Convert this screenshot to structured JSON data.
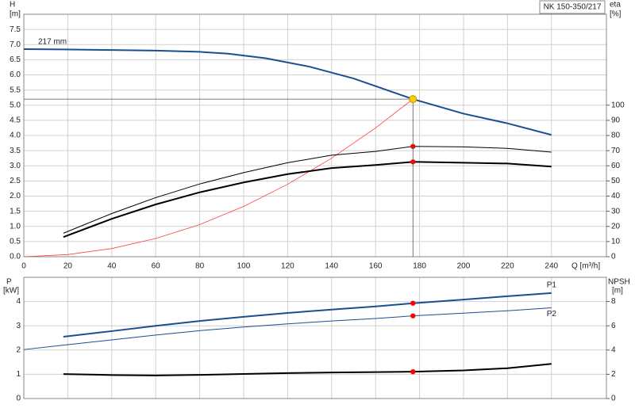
{
  "chart_data": [
    {
      "type": "line",
      "title": "NK 150-350/217",
      "annotation": "217 mm",
      "xlabel": "Q [m³/h]",
      "ylabel": "H",
      "yunit": "[m]",
      "y2label": "eta",
      "y2unit": "[%]",
      "xlim": [
        0,
        265
      ],
      "xticks": [
        0,
        20,
        40,
        60,
        80,
        100,
        120,
        140,
        160,
        180,
        200,
        220,
        240
      ],
      "ylim": [
        0,
        8
      ],
      "yticks": [
        {
          "value": 0,
          "label": "0.0"
        },
        {
          "value": 0.5,
          "label": "0.5"
        },
        {
          "value": 1,
          "label": "1.0"
        },
        {
          "value": 1.5,
          "label": "1.5"
        },
        {
          "value": 2,
          "label": "2.0"
        },
        {
          "value": 2.5,
          "label": "2.5"
        },
        {
          "value": 3,
          "label": "3.0"
        },
        {
          "value": 3.5,
          "label": "3.5"
        },
        {
          "value": 4,
          "label": "4.0"
        },
        {
          "value": 4.5,
          "label": "4.5"
        },
        {
          "value": 5,
          "label": "5.0"
        },
        {
          "value": 5.5,
          "label": "5.5"
        },
        {
          "value": 6,
          "label": "6.0"
        },
        {
          "value": 6.5,
          "label": "6.5"
        },
        {
          "value": 7,
          "label": "7.0"
        },
        {
          "value": 7.5,
          "label": "7.5"
        }
      ],
      "y2lim": [
        0,
        160
      ],
      "y2ticks": [
        0,
        10,
        20,
        30,
        40,
        50,
        60,
        70,
        80,
        90,
        100
      ],
      "grid": true,
      "operating_point": {
        "x": 177,
        "y": 5.2,
        "color": "#ffcc00",
        "guide_color": "#555555"
      },
      "series": [
        {
          "color": "#1a4f8f",
          "line_width": 2,
          "x": [
            0,
            18,
            40,
            60,
            80,
            93,
            110,
            130,
            150,
            177,
            200,
            220,
            240
          ],
          "values": [
            6.85,
            6.84,
            6.82,
            6.8,
            6.76,
            6.7,
            6.55,
            6.27,
            5.88,
            5.2,
            4.72,
            4.4,
            4.02
          ]
        },
        {
          "color": "#ff4040",
          "line_width": 0.8,
          "x": [
            0,
            20,
            40,
            60,
            80,
            100,
            120,
            140,
            160,
            177
          ],
          "values": [
            0,
            0.07,
            0.27,
            0.6,
            1.06,
            1.66,
            2.39,
            3.25,
            4.25,
            5.2
          ]
        },
        {
          "color": "#000000",
          "line_width": 1,
          "axis": "y2",
          "point_marker": "#ff0000",
          "x": [
            18,
            40,
            60,
            80,
            100,
            120,
            140,
            160,
            177,
            200,
            220,
            240
          ],
          "values": [
            15.5,
            28.5,
            39,
            48,
            55.5,
            62,
            67,
            69.5,
            72.8,
            72.5,
            71.5,
            69
          ]
        },
        {
          "color": "#000000",
          "line_width": 2,
          "axis": "y2",
          "point_marker": "#ff0000",
          "x": [
            18,
            40,
            60,
            80,
            100,
            120,
            140,
            160,
            177,
            200,
            220,
            240
          ],
          "values": [
            13,
            25,
            34.5,
            42.5,
            49,
            54.5,
            58.5,
            60.5,
            62.6,
            62,
            61.5,
            59.5
          ]
        }
      ]
    },
    {
      "type": "line",
      "ylabel": "P",
      "yunit": "[kW]",
      "y2label": "NPSH",
      "y2unit": "[m]",
      "ylim": [
        0,
        5
      ],
      "yticks": [
        0,
        1,
        2,
        3,
        4
      ],
      "y2lim": [
        0,
        10
      ],
      "y2ticks": [
        0,
        2,
        4,
        6,
        8
      ],
      "grid": true,
      "series": [
        {
          "name": "P1",
          "color": "#1a4f8f",
          "line_width": 2,
          "point_marker": "#ff0000",
          "x": [
            18,
            40,
            60,
            80,
            100,
            120,
            140,
            160,
            177,
            200,
            220,
            240
          ],
          "values": [
            2.55,
            2.78,
            3.0,
            3.2,
            3.37,
            3.53,
            3.67,
            3.8,
            3.93,
            4.08,
            4.22,
            4.35
          ]
        },
        {
          "name": "P2",
          "color": "#1a4f8f",
          "line_width": 1,
          "point_marker": "#ff0000",
          "x": [
            0,
            18,
            40,
            60,
            80,
            100,
            120,
            140,
            160,
            177,
            200,
            220,
            240
          ],
          "values": [
            2.02,
            2.2,
            2.42,
            2.62,
            2.8,
            2.95,
            3.08,
            3.2,
            3.3,
            3.41,
            3.52,
            3.62,
            3.74
          ]
        },
        {
          "color": "#000000",
          "line_width": 2,
          "axis": "y2",
          "point_marker": "#ff0000",
          "x": [
            18,
            40,
            60,
            80,
            100,
            120,
            140,
            160,
            177,
            200,
            220,
            240
          ],
          "values": [
            2.02,
            1.94,
            1.9,
            1.95,
            2.03,
            2.1,
            2.15,
            2.18,
            2.21,
            2.32,
            2.5,
            2.86
          ]
        }
      ]
    }
  ]
}
